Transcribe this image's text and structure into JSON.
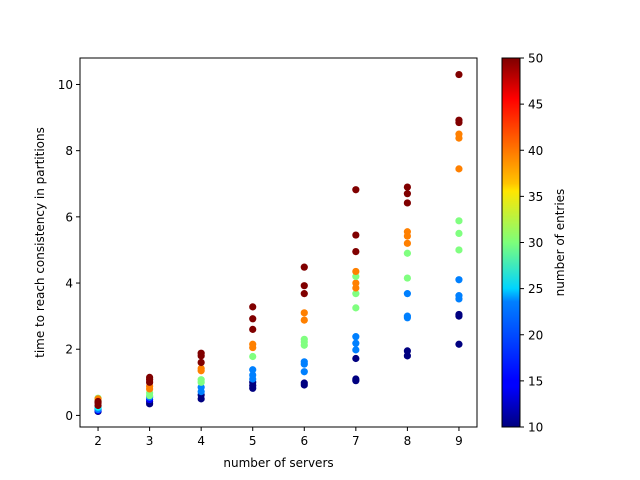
{
  "chart_data": {
    "type": "scatter",
    "title": "",
    "xlabel": "number of servers",
    "ylabel": "time to reach consistency in partitions",
    "xlim": [
      1.65,
      9.35
    ],
    "ylim": [
      -0.35,
      10.8
    ],
    "x_ticks": [
      2,
      3,
      4,
      5,
      6,
      7,
      8,
      9
    ],
    "y_ticks": [
      0,
      2,
      4,
      6,
      8,
      10
    ],
    "grid": false,
    "colorbar": {
      "label": "number of entries",
      "colormap": "jet",
      "range": [
        10,
        50
      ],
      "ticks": [
        10,
        15,
        20,
        25,
        30,
        35,
        40,
        45,
        50
      ]
    },
    "points": [
      {
        "x": 2,
        "y": 0.12,
        "c": 10
      },
      {
        "x": 2,
        "y": 0.15,
        "c": 15
      },
      {
        "x": 2,
        "y": 0.18,
        "c": 20
      },
      {
        "x": 2,
        "y": 0.22,
        "c": 20
      },
      {
        "x": 2,
        "y": 0.25,
        "c": 25
      },
      {
        "x": 2,
        "y": 0.45,
        "c": 30
      },
      {
        "x": 2,
        "y": 0.52,
        "c": 30
      },
      {
        "x": 2,
        "y": 0.5,
        "c": 40
      },
      {
        "x": 2,
        "y": 0.3,
        "c": 50
      },
      {
        "x": 2,
        "y": 0.38,
        "c": 50
      },
      {
        "x": 2,
        "y": 0.42,
        "c": 50
      },
      {
        "x": 3,
        "y": 0.35,
        "c": 10
      },
      {
        "x": 3,
        "y": 0.42,
        "c": 10
      },
      {
        "x": 3,
        "y": 0.48,
        "c": 15
      },
      {
        "x": 3,
        "y": 0.55,
        "c": 20
      },
      {
        "x": 3,
        "y": 0.6,
        "c": 30
      },
      {
        "x": 3,
        "y": 0.68,
        "c": 30
      },
      {
        "x": 3,
        "y": 0.8,
        "c": 40
      },
      {
        "x": 3,
        "y": 0.88,
        "c": 40
      },
      {
        "x": 3,
        "y": 1.0,
        "c": 50
      },
      {
        "x": 3,
        "y": 1.08,
        "c": 50
      },
      {
        "x": 3,
        "y": 1.15,
        "c": 50
      },
      {
        "x": 4,
        "y": 0.5,
        "c": 10
      },
      {
        "x": 4,
        "y": 0.62,
        "c": 10
      },
      {
        "x": 4,
        "y": 0.72,
        "c": 20
      },
      {
        "x": 4,
        "y": 0.85,
        "c": 20
      },
      {
        "x": 4,
        "y": 1.0,
        "c": 30
      },
      {
        "x": 4,
        "y": 1.08,
        "c": 30
      },
      {
        "x": 4,
        "y": 1.35,
        "c": 40
      },
      {
        "x": 4,
        "y": 1.42,
        "c": 40
      },
      {
        "x": 4,
        "y": 1.6,
        "c": 50
      },
      {
        "x": 4,
        "y": 1.8,
        "c": 50
      },
      {
        "x": 4,
        "y": 1.88,
        "c": 50
      },
      {
        "x": 5,
        "y": 0.82,
        "c": 10
      },
      {
        "x": 5,
        "y": 0.9,
        "c": 10
      },
      {
        "x": 5,
        "y": 1.0,
        "c": 10
      },
      {
        "x": 5,
        "y": 1.1,
        "c": 20
      },
      {
        "x": 5,
        "y": 1.22,
        "c": 20
      },
      {
        "x": 5,
        "y": 1.38,
        "c": 20
      },
      {
        "x": 5,
        "y": 1.78,
        "c": 30
      },
      {
        "x": 5,
        "y": 2.05,
        "c": 40
      },
      {
        "x": 5,
        "y": 2.15,
        "c": 40
      },
      {
        "x": 5,
        "y": 2.6,
        "c": 50
      },
      {
        "x": 5,
        "y": 2.92,
        "c": 50
      },
      {
        "x": 5,
        "y": 3.28,
        "c": 50
      },
      {
        "x": 6,
        "y": 0.92,
        "c": 10
      },
      {
        "x": 6,
        "y": 0.98,
        "c": 10
      },
      {
        "x": 6,
        "y": 1.32,
        "c": 20
      },
      {
        "x": 6,
        "y": 1.55,
        "c": 20
      },
      {
        "x": 6,
        "y": 1.62,
        "c": 20
      },
      {
        "x": 6,
        "y": 2.12,
        "c": 30
      },
      {
        "x": 6,
        "y": 2.22,
        "c": 30
      },
      {
        "x": 6,
        "y": 2.3,
        "c": 30
      },
      {
        "x": 6,
        "y": 2.88,
        "c": 40
      },
      {
        "x": 6,
        "y": 3.1,
        "c": 40
      },
      {
        "x": 6,
        "y": 3.68,
        "c": 50
      },
      {
        "x": 6,
        "y": 3.92,
        "c": 50
      },
      {
        "x": 6,
        "y": 4.48,
        "c": 50
      },
      {
        "x": 7,
        "y": 1.05,
        "c": 10
      },
      {
        "x": 7,
        "y": 1.1,
        "c": 10
      },
      {
        "x": 7,
        "y": 1.72,
        "c": 10
      },
      {
        "x": 7,
        "y": 1.98,
        "c": 20
      },
      {
        "x": 7,
        "y": 2.18,
        "c": 20
      },
      {
        "x": 7,
        "y": 2.38,
        "c": 20
      },
      {
        "x": 7,
        "y": 3.25,
        "c": 30
      },
      {
        "x": 7,
        "y": 3.68,
        "c": 30
      },
      {
        "x": 7,
        "y": 3.85,
        "c": 40
      },
      {
        "x": 7,
        "y": 4.0,
        "c": 40
      },
      {
        "x": 7,
        "y": 4.2,
        "c": 30
      },
      {
        "x": 7,
        "y": 4.35,
        "c": 40
      },
      {
        "x": 7,
        "y": 4.95,
        "c": 50
      },
      {
        "x": 7,
        "y": 5.45,
        "c": 50
      },
      {
        "x": 7,
        "y": 6.82,
        "c": 50
      },
      {
        "x": 8,
        "y": 1.8,
        "c": 10
      },
      {
        "x": 8,
        "y": 1.95,
        "c": 10
      },
      {
        "x": 8,
        "y": 2.95,
        "c": 20
      },
      {
        "x": 8,
        "y": 3.0,
        "c": 20
      },
      {
        "x": 8,
        "y": 3.68,
        "c": 20
      },
      {
        "x": 8,
        "y": 4.15,
        "c": 30
      },
      {
        "x": 8,
        "y": 4.9,
        "c": 30
      },
      {
        "x": 8,
        "y": 5.2,
        "c": 40
      },
      {
        "x": 8,
        "y": 5.42,
        "c": 40
      },
      {
        "x": 8,
        "y": 5.55,
        "c": 40
      },
      {
        "x": 8,
        "y": 6.42,
        "c": 50
      },
      {
        "x": 8,
        "y": 6.7,
        "c": 50
      },
      {
        "x": 8,
        "y": 6.9,
        "c": 50
      },
      {
        "x": 9,
        "y": 2.15,
        "c": 10
      },
      {
        "x": 9,
        "y": 3.0,
        "c": 10
      },
      {
        "x": 9,
        "y": 3.05,
        "c": 10
      },
      {
        "x": 9,
        "y": 3.52,
        "c": 20
      },
      {
        "x": 9,
        "y": 3.62,
        "c": 20
      },
      {
        "x": 9,
        "y": 4.1,
        "c": 20
      },
      {
        "x": 9,
        "y": 5.0,
        "c": 30
      },
      {
        "x": 9,
        "y": 5.5,
        "c": 30
      },
      {
        "x": 9,
        "y": 5.88,
        "c": 30
      },
      {
        "x": 9,
        "y": 7.45,
        "c": 40
      },
      {
        "x": 9,
        "y": 8.38,
        "c": 40
      },
      {
        "x": 9,
        "y": 8.5,
        "c": 40
      },
      {
        "x": 9,
        "y": 8.85,
        "c": 50
      },
      {
        "x": 9,
        "y": 8.92,
        "c": 50
      },
      {
        "x": 9,
        "y": 10.3,
        "c": 50
      }
    ]
  }
}
